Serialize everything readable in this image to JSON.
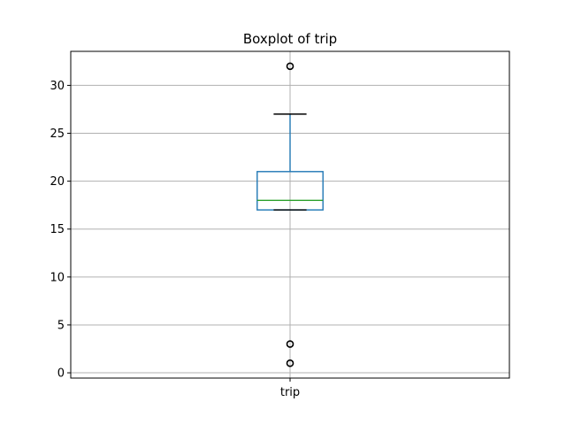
{
  "chart_data": {
    "type": "boxplot",
    "title": "Boxplot of trip",
    "xlabel": "",
    "ylabel": "",
    "categories": [
      "trip"
    ],
    "ylim": [
      -0.55,
      33.55
    ],
    "yticks": [
      0,
      5,
      10,
      15,
      20,
      25,
      30
    ],
    "grid": true,
    "boxes": [
      {
        "label": "trip",
        "whisker_low": 17,
        "q1": 17,
        "median": 18,
        "q3": 21,
        "whisker_high": 27,
        "outliers": [
          32,
          3,
          1
        ]
      }
    ],
    "colors": {
      "box": "#1f77b4",
      "whisker": "#1f77b4",
      "cap": "#000000",
      "median": "#2ca02c",
      "grid": "#b0b0b0",
      "outlier": "#000000"
    }
  }
}
